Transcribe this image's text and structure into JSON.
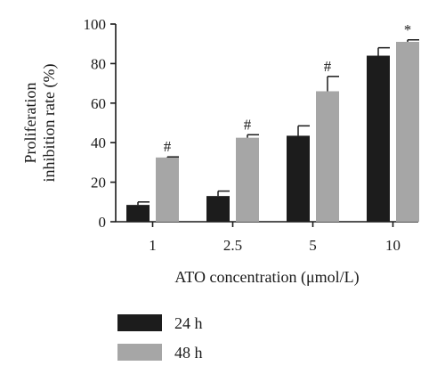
{
  "chart_data": {
    "type": "bar",
    "title": "",
    "xlabel": "ATO concentration (μmol/L)",
    "ylabel_lines": [
      "Proliferation",
      "inhibition rate (%)"
    ],
    "ylim": [
      0,
      100
    ],
    "yticks": [
      0,
      20,
      40,
      60,
      80,
      100
    ],
    "categories": [
      "1",
      "2.5",
      "5",
      "10"
    ],
    "series": [
      {
        "name": "24 h",
        "color": "#1c1c1c",
        "values": [
          8.5,
          13,
          43.5,
          84
        ],
        "errors": [
          1.5,
          2.5,
          5,
          4
        ],
        "significance": [
          "",
          "",
          "",
          ""
        ]
      },
      {
        "name": "48 h",
        "color": "#a6a6a6",
        "values": [
          32.5,
          42.5,
          66,
          91
        ],
        "errors": [
          0.3,
          1.5,
          7.5,
          1
        ],
        "significance": [
          "#",
          "#",
          "#",
          "*"
        ]
      }
    ],
    "legend_position": "bottom-left",
    "grid": false
  }
}
